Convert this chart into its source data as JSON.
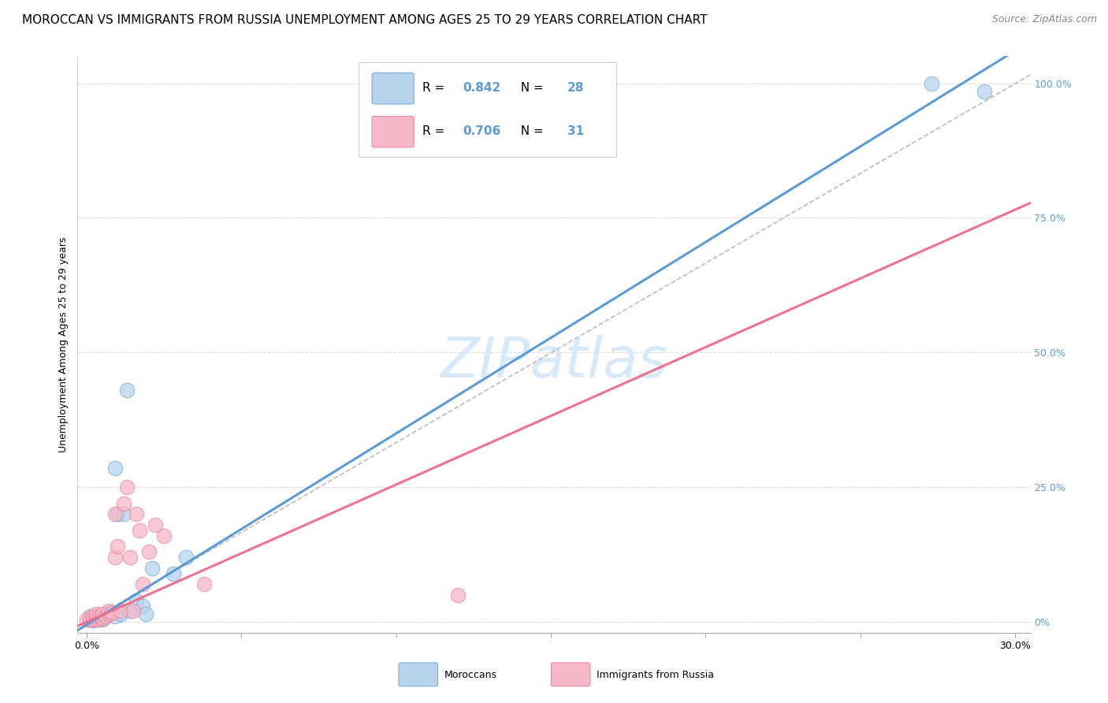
{
  "title": "MOROCCAN VS IMMIGRANTS FROM RUSSIA UNEMPLOYMENT AMONG AGES 25 TO 29 YEARS CORRELATION CHART",
  "source": "Source: ZipAtlas.com",
  "ylabel": "Unemployment Among Ages 25 to 29 years",
  "xlim": [
    -0.003,
    0.305
  ],
  "ylim": [
    -0.02,
    1.05
  ],
  "xtick_positions": [
    0.0,
    0.05,
    0.1,
    0.15,
    0.2,
    0.25,
    0.3
  ],
  "xtick_labels_show": [
    "0.0%",
    "30.0%"
  ],
  "ytick_positions": [
    0.0,
    0.25,
    0.5,
    0.75,
    1.0
  ],
  "ytick_labels": [
    "0%",
    "25.0%",
    "50.0%",
    "75.0%",
    "100.0%"
  ],
  "blue_R": 0.842,
  "blue_N": 28,
  "pink_R": 0.706,
  "pink_N": 31,
  "blue_fill": "#b8d4ec",
  "pink_fill": "#f5b8c8",
  "blue_edge": "#5b9bd5",
  "pink_edge": "#f07090",
  "ref_line_color": "#bbbbbb",
  "blue_line_color": "#5b9bd5",
  "pink_line_color": "#f07090",
  "grid_color": "#dddddd",
  "watermark_color": "#d8eaf8",
  "blue_line_slope": 3.55,
  "blue_line_intercept": -0.005,
  "pink_line_slope": 2.55,
  "pink_line_intercept": 0.0,
  "ref_slope": 3.33,
  "moroccans_x": [
    0.001,
    0.001,
    0.002,
    0.002,
    0.003,
    0.003,
    0.004,
    0.004,
    0.005,
    0.005,
    0.006,
    0.007,
    0.008,
    0.009,
    0.009,
    0.01,
    0.011,
    0.012,
    0.013,
    0.014,
    0.016,
    0.018,
    0.019,
    0.021,
    0.028,
    0.032,
    0.273,
    0.29
  ],
  "moroccans_y": [
    0.005,
    0.01,
    0.003,
    0.008,
    0.005,
    0.01,
    0.005,
    0.008,
    0.01,
    0.005,
    0.01,
    0.015,
    0.018,
    0.01,
    0.285,
    0.2,
    0.015,
    0.2,
    0.43,
    0.02,
    0.04,
    0.03,
    0.015,
    0.1,
    0.09,
    0.12,
    1.0,
    0.985
  ],
  "russia_x": [
    0.0,
    0.001,
    0.002,
    0.002,
    0.003,
    0.003,
    0.003,
    0.004,
    0.004,
    0.005,
    0.005,
    0.006,
    0.007,
    0.007,
    0.008,
    0.009,
    0.009,
    0.01,
    0.011,
    0.012,
    0.013,
    0.014,
    0.015,
    0.016,
    0.017,
    0.018,
    0.02,
    0.022,
    0.025,
    0.038,
    0.12
  ],
  "russia_y": [
    0.005,
    0.005,
    0.005,
    0.01,
    0.005,
    0.01,
    0.015,
    0.005,
    0.01,
    0.008,
    0.015,
    0.01,
    0.015,
    0.02,
    0.018,
    0.12,
    0.2,
    0.14,
    0.02,
    0.22,
    0.25,
    0.12,
    0.02,
    0.2,
    0.17,
    0.07,
    0.13,
    0.18,
    0.16,
    0.07,
    0.05
  ],
  "dot_size": 180,
  "dot_alpha": 0.75,
  "title_fontsize": 11,
  "source_fontsize": 9,
  "ylabel_fontsize": 9,
  "tick_fontsize": 9,
  "legend_fontsize": 11,
  "watermark_fontsize": 52
}
